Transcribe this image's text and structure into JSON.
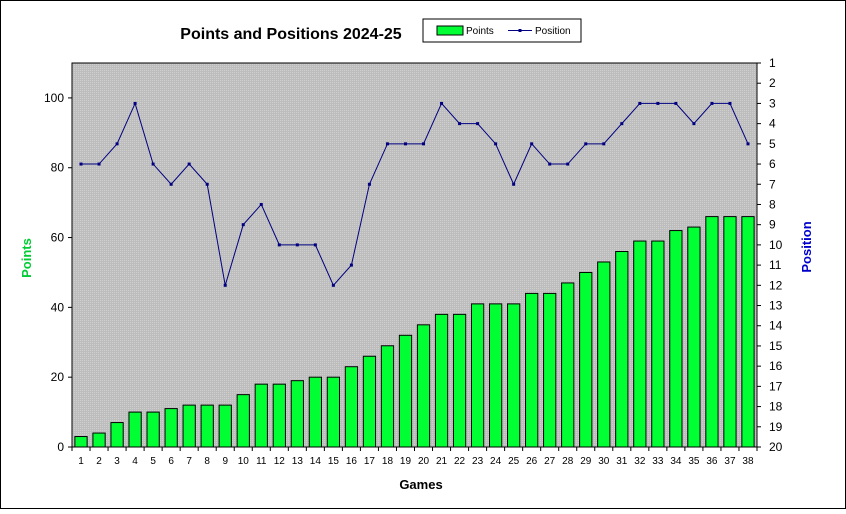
{
  "chart_data": {
    "type": "bar",
    "title": "Points and Positions 2024-25",
    "xlabel": "Games",
    "ylabel": "Points",
    "y2label": "Position",
    "categories": [
      "1",
      "2",
      "3",
      "4",
      "5",
      "6",
      "7",
      "8",
      "9",
      "10",
      "11",
      "12",
      "13",
      "14",
      "15",
      "16",
      "17",
      "18",
      "19",
      "20",
      "21",
      "22",
      "23",
      "24",
      "25",
      "26",
      "27",
      "28",
      "29",
      "30",
      "31",
      "32",
      "33",
      "34",
      "35",
      "36",
      "37",
      "38"
    ],
    "series": [
      {
        "name": "Points",
        "type": "bar",
        "axis": "left",
        "values": [
          3,
          4,
          7,
          10,
          10,
          11,
          12,
          12,
          12,
          15,
          18,
          18,
          19,
          20,
          20,
          23,
          26,
          29,
          32,
          35,
          38,
          38,
          41,
          41,
          41,
          44,
          44,
          47,
          50,
          53,
          56,
          59,
          59,
          62,
          63,
          66,
          66,
          66
        ]
      },
      {
        "name": "Position",
        "type": "line",
        "axis": "right",
        "values": [
          6,
          6,
          5,
          3,
          6,
          7,
          6,
          7,
          12,
          9,
          8,
          10,
          10,
          10,
          12,
          11,
          7,
          5,
          5,
          5,
          3,
          4,
          4,
          5,
          7,
          5,
          6,
          6,
          5,
          5,
          4,
          3,
          3,
          3,
          4,
          3,
          3,
          5
        ]
      }
    ],
    "ylim": [
      0,
      110
    ],
    "yticks": [
      0,
      20,
      40,
      60,
      80,
      100
    ],
    "y2lim": [
      1,
      20
    ],
    "y2_inverted": true,
    "y2ticks": [
      1,
      2,
      3,
      4,
      5,
      6,
      7,
      8,
      9,
      10,
      11,
      12,
      13,
      14,
      15,
      16,
      17,
      18,
      19,
      20
    ],
    "legend": {
      "placement": "top-right",
      "entries": [
        "Points",
        "Position"
      ]
    },
    "grid": false,
    "colors": {
      "bar_fill": "#00ff33",
      "line": "#000080",
      "plot_background": "#c0c0c0",
      "points_label": "#00cc33",
      "position_label": "#0000cc"
    }
  }
}
